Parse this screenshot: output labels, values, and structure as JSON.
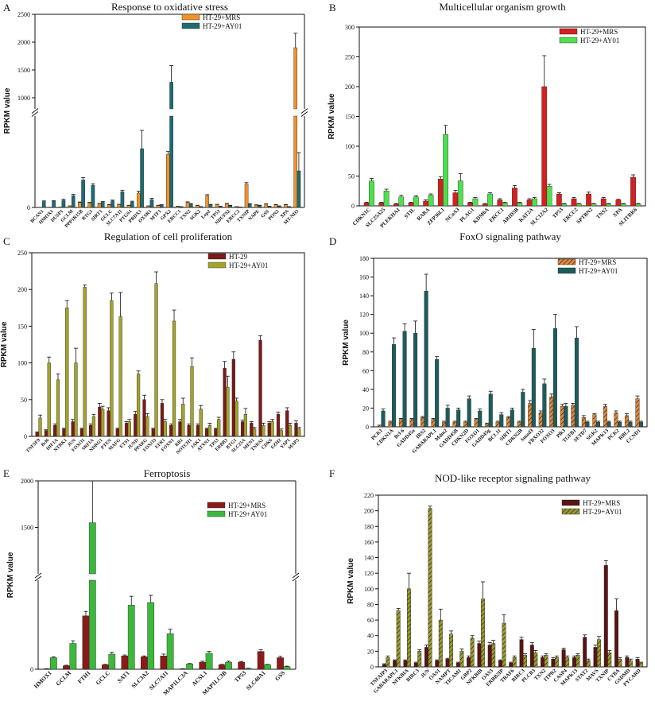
{
  "chart_data": [
    {
      "panel": "A",
      "type": "bar",
      "title": "Response to oxidative stress",
      "ylabel": "RPKM value",
      "axis_break": {
        "segments": [
          {
            "lo": 0,
            "hi": 700,
            "ticks": []
          },
          {
            "lo": 800,
            "hi": 2500,
            "ticks": [
              1000,
              1500,
              2000,
              2500
            ]
          }
        ]
      },
      "categories": [
        "BCAN1",
        "HMOX1",
        "DUSP1",
        "GCLM",
        "PPP1R15B",
        "BTG1",
        "SIRT1",
        "GCLC",
        "SLC7A11",
        "PTGS1",
        "PRDX1",
        "OXSR1",
        "MTF1",
        "GPX2",
        "ERCC1",
        "TXN2",
        "SGK2",
        "Lep2",
        "TP53",
        "NDUFS2",
        "ERCC2",
        "TXNIP",
        "NAPE",
        "GSS",
        "PON2",
        "XPA",
        "MT-ND3"
      ],
      "series": [
        {
          "name": "HT-29+MRS",
          "color": "#f0922a",
          "values": [
            2,
            3,
            5,
            10,
            38,
            35,
            28,
            20,
            22,
            15,
            110,
            10,
            15,
            408,
            8,
            38,
            15,
            90,
            22,
            28,
            5,
            178,
            18,
            25,
            20,
            20,
            1900
          ],
          "errors": [
            0,
            0,
            0,
            2,
            4,
            4,
            3,
            2,
            2,
            2,
            15,
            2,
            2,
            20,
            1,
            5,
            2,
            8,
            2,
            3,
            1,
            12,
            2,
            3,
            2,
            2,
            260
          ]
        },
        {
          "name": "HT-29+AY01",
          "color": "#1e6c72",
          "values": [
            45,
            48,
            55,
            90,
            210,
            170,
            40,
            50,
            120,
            42,
            450,
            60,
            18,
            1280,
            5,
            25,
            5,
            20,
            8,
            15,
            2,
            25,
            15,
            8,
            10,
            5,
            280
          ],
          "errors": [
            5,
            5,
            8,
            10,
            18,
            12,
            5,
            6,
            12,
            6,
            140,
            10,
            3,
            300,
            1,
            5,
            1,
            3,
            1,
            2,
            1,
            4,
            2,
            1,
            2,
            1,
            140
          ]
        }
      ]
    },
    {
      "panel": "B",
      "type": "bar",
      "title": "Multicellular organism growth",
      "ylabel": "RPKM value",
      "ylim": [
        0,
        300
      ],
      "ticks": [
        0,
        50,
        100,
        150,
        200,
        250,
        300
      ],
      "categories": [
        "CDKN1C",
        "SLC25A25",
        "PLEKHA1",
        "STIL",
        "RARA",
        "ZFP36L1",
        "NCoA3",
        "PLAG1",
        "KDM6A",
        "ERCC1",
        "ARID5B",
        "KAT2A",
        "SLC12A2",
        "TP53",
        "ERCC2",
        "SPTBN2",
        "TNS2",
        "XPA",
        "SLITRK6"
      ],
      "series": [
        {
          "name": "HT-29+MRS",
          "color": "#d42020",
          "values": [
            5,
            5,
            3,
            5,
            8,
            45,
            22,
            5,
            3,
            10,
            30,
            10,
            200,
            20,
            12,
            20,
            12,
            10,
            48
          ],
          "errors": [
            1,
            1,
            1,
            1,
            2,
            4,
            4,
            1,
            1,
            2,
            4,
            2,
            52,
            2,
            2,
            3,
            2,
            1,
            4
          ]
        },
        {
          "name": "HT-29+AY01",
          "color": "#4ee04e",
          "values": [
            42,
            25,
            15,
            15,
            18,
            120,
            42,
            12,
            20,
            5,
            5,
            12,
            33,
            3,
            3,
            3,
            3,
            3,
            3
          ],
          "errors": [
            4,
            3,
            3,
            2,
            2,
            15,
            12,
            2,
            2,
            1,
            1,
            2,
            3,
            1,
            1,
            1,
            1,
            1,
            1
          ]
        }
      ]
    },
    {
      "panel": "C",
      "type": "bar",
      "title": "Regulation of cell proliferation",
      "ylabel": "RPKM value",
      "ylim": [
        0,
        250
      ],
      "ticks": [
        0,
        50,
        100,
        150,
        200,
        250
      ],
      "categories": [
        "TNFSF9",
        "Bcl6",
        "HIF1A",
        "NTRK1",
        "JUN",
        "FOXO1",
        "SRFIA",
        "NDRG1",
        "PTEN",
        "MAFG",
        "ETS1",
        "JUND",
        "PPARG",
        "FOXO3",
        "EFR1",
        "FOXN1",
        "RB1",
        "NOTCH1",
        "JAK1",
        "ATXN1",
        "TP53",
        "ERBB3",
        "BTG1",
        "SLC25A",
        "MEN1",
        "TNKS2",
        "CDK6",
        "EZH2",
        "YAP1",
        "MAP3"
      ],
      "series": [
        {
          "name": "HT-29",
          "color": "#7b1a1a",
          "values": [
            5,
            8,
            15,
            10,
            20,
            10,
            15,
            40,
            35,
            10,
            18,
            30,
            50,
            10,
            45,
            15,
            20,
            15,
            15,
            10,
            10,
            93,
            105,
            20,
            18,
            131,
            18,
            30,
            35,
            18
          ],
          "errors": [
            1,
            1,
            2,
            1,
            3,
            1,
            2,
            5,
            4,
            1,
            2,
            4,
            6,
            1,
            5,
            2,
            3,
            2,
            2,
            1,
            1,
            9,
            10,
            2,
            2,
            6,
            2,
            3,
            4,
            3
          ]
        },
        {
          "name": "HT-29+AY01",
          "color": "#a3a32a",
          "values": [
            25,
            100,
            77,
            175,
            100,
            203,
            27,
            37,
            185,
            163,
            20,
            85,
            27,
            208,
            20,
            157,
            44,
            95,
            37,
            15,
            23,
            67,
            48,
            30,
            10,
            15,
            20,
            8,
            15,
            10
          ],
          "errors": [
            4,
            8,
            8,
            10,
            20,
            3,
            3,
            4,
            10,
            33,
            3,
            4,
            4,
            16,
            3,
            15,
            8,
            12,
            5,
            3,
            3,
            15,
            4,
            8,
            2,
            3,
            3,
            2,
            3,
            2
          ]
        }
      ]
    },
    {
      "panel": "D",
      "type": "bar",
      "title": "FoxO signaling pathway",
      "ylabel": "RPKM value",
      "ylim": [
        0,
        180
      ],
      "ticks": [
        0,
        20,
        40,
        60,
        80,
        100,
        120,
        140,
        160,
        180
      ],
      "categories": [
        "PCK1",
        "CDKN1A",
        "Bcl-6",
        "GADD45a",
        "IRS2",
        "GABARAPL1",
        "Mdm2",
        "GADD45B",
        "CDKN2D",
        "FOXO1",
        "GADD45g",
        "BCL11",
        "SIRT1",
        "CDKN2B",
        "Smad3",
        "FBXO32",
        "FOXO3",
        "Plk3",
        "TGFB1",
        "SETD7",
        "SGK2",
        "MAPK13",
        "PCK2",
        "RBL2",
        "CCND1"
      ],
      "series": [
        {
          "name": "HT-29+MRS",
          "color": "#d2691e",
          "values": [
            2,
            5,
            8,
            8,
            10,
            8,
            5,
            5,
            5,
            8,
            3,
            5,
            10,
            5,
            25,
            15,
            32,
            22,
            23,
            10,
            13,
            22,
            15,
            12,
            30
          ],
          "errors": [
            0,
            1,
            1,
            1,
            1,
            1,
            1,
            1,
            1,
            1,
            1,
            1,
            1,
            1,
            3,
            2,
            3,
            2,
            2,
            2,
            1,
            2,
            2,
            2,
            3
          ]
        },
        {
          "name": "HT-29+AY01",
          "color": "#1e5c5c",
          "values": [
            17,
            88,
            102,
            100,
            145,
            72,
            20,
            18,
            30,
            17,
            35,
            13,
            18,
            37,
            84,
            46,
            105,
            22,
            95,
            5,
            5,
            5,
            5,
            5,
            5
          ],
          "errors": [
            2,
            7,
            8,
            13,
            18,
            3,
            3,
            2,
            3,
            2,
            3,
            2,
            2,
            3,
            20,
            5,
            15,
            3,
            12,
            1,
            1,
            1,
            1,
            1,
            1
          ]
        }
      ]
    },
    {
      "panel": "E",
      "type": "bar",
      "title": "Ferroptosis",
      "ylabel": "RPKM value",
      "axis_break": {
        "segments": [
          {
            "lo": 0,
            "hi": 1000,
            "ticks": []
          },
          {
            "lo": 1000,
            "hi": 2000,
            "ticks": [
              1500,
              2000
            ]
          }
        ]
      },
      "categories": [
        "HMOX1",
        "GCLM",
        "FTH1",
        "GCLC",
        "SAT1",
        "SLC3A2",
        "SLC7A11",
        "MAP1LC3A",
        "ACSL1",
        "MAP1LC3B",
        "TP53",
        "SLC40A1",
        "GSS"
      ],
      "series": [
        {
          "name": "HT-29+MRS",
          "color": "#8b1a1a",
          "values": [
            5,
            40,
            600,
            50,
            150,
            140,
            150,
            5,
            80,
            50,
            80,
            200,
            130
          ],
          "errors": [
            1,
            5,
            50,
            5,
            10,
            10,
            20,
            1,
            10,
            5,
            8,
            20,
            15
          ]
        },
        {
          "name": "HT-29+AY01",
          "color": "#3cb83c",
          "values": [
            130,
            290,
            1550,
            170,
            720,
            750,
            400,
            60,
            180,
            80,
            10,
            50,
            30
          ],
          "errors": [
            10,
            30,
            450,
            20,
            100,
            80,
            50,
            5,
            20,
            10,
            2,
            5,
            5
          ]
        }
      ]
    },
    {
      "panel": "F",
      "type": "bar",
      "title": "NOD-like receptor signaling pathway",
      "ylabel": "RPKM value",
      "ylim": [
        0,
        220
      ],
      "ticks": [
        0,
        20,
        40,
        60,
        80,
        100,
        120,
        140,
        160,
        180,
        200,
        220
      ],
      "categories": [
        "TNFAIP3",
        "GABARAPL1",
        "NFKBIA",
        "BIRC3",
        "JUN",
        "OAS1",
        "NAMPT",
        "TICAM1",
        "GBP2",
        "NFKBIB",
        "OAS3",
        "ERBB2IP",
        "TRAF6",
        "BIRC3",
        "PLCB3",
        "TXN2",
        "ITPR2",
        "CASP4",
        "MAPK13",
        "STAT2",
        "MAVS",
        "TXNIP",
        "CYBA",
        "GSDMD",
        "PYCARD"
      ],
      "series": [
        {
          "name": "HT-29+MRS",
          "color": "#5a1414",
          "values": [
            3,
            8,
            8,
            5,
            25,
            8,
            10,
            5,
            12,
            30,
            28,
            8,
            5,
            35,
            28,
            12,
            10,
            22,
            12,
            38,
            25,
            130,
            72,
            12,
            10
          ],
          "errors": [
            1,
            1,
            1,
            1,
            3,
            1,
            1,
            1,
            2,
            3,
            3,
            1,
            1,
            3,
            3,
            2,
            2,
            2,
            2,
            3,
            3,
            6,
            15,
            2,
            2
          ]
        },
        {
          "name": "HT-29+AY01",
          "color": "#8a8a2a",
          "values": [
            12,
            72,
            100,
            20,
            203,
            60,
            42,
            20,
            37,
            87,
            30,
            56,
            12,
            15,
            18,
            15,
            12,
            12,
            15,
            8,
            35,
            18,
            10,
            8,
            5
          ],
          "errors": [
            2,
            3,
            20,
            2,
            3,
            14,
            4,
            3,
            3,
            22,
            4,
            11,
            2,
            2,
            3,
            2,
            2,
            2,
            2,
            2,
            4,
            3,
            2,
            2,
            1
          ]
        }
      ]
    }
  ]
}
